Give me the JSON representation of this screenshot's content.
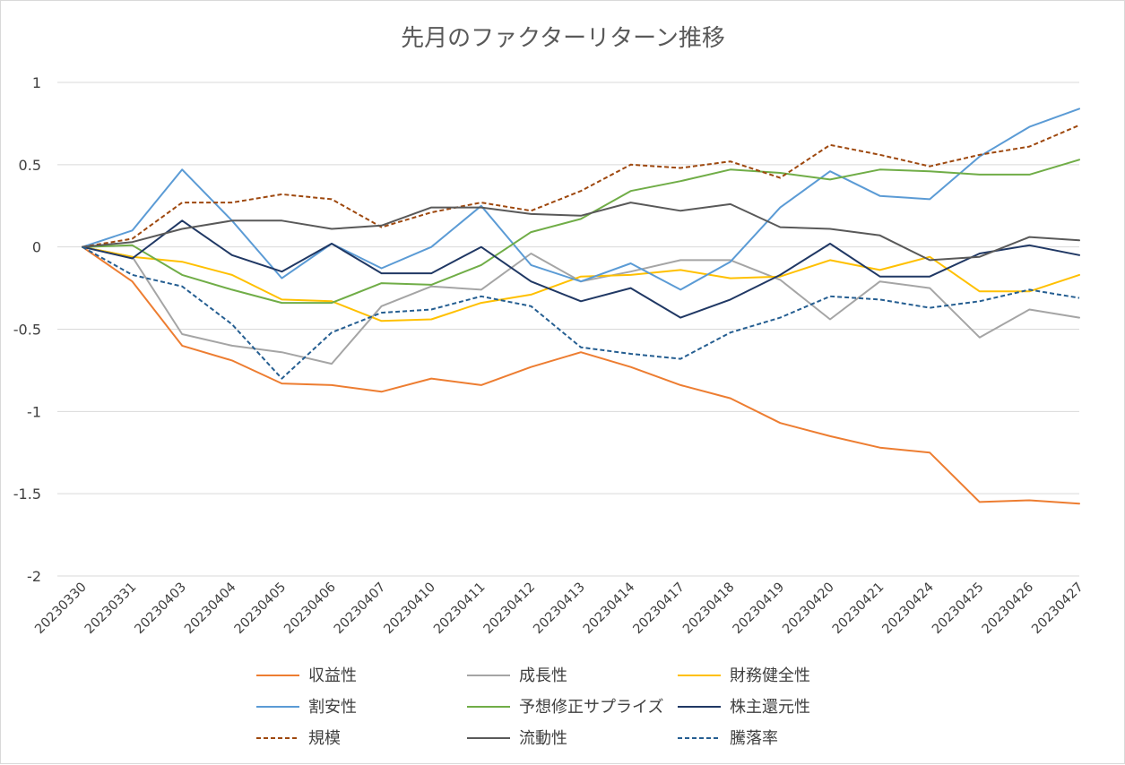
{
  "chart_data": {
    "type": "line",
    "title": "先月のファクターリターン推移",
    "xlabel": "",
    "ylabel": "",
    "ylim": [
      -2,
      1
    ],
    "yticks": [
      1,
      0.5,
      0,
      -0.5,
      -1,
      -1.5,
      -2
    ],
    "ytick_labels": [
      "1",
      "0.5",
      "0",
      "-0.5",
      "-1",
      "-1.5",
      "-2"
    ],
    "grid": true,
    "legend_position": "bottom",
    "x": [
      "20230330",
      "20230331",
      "20230403",
      "20230404",
      "20230405",
      "20230406",
      "20230407",
      "20230410",
      "20230411",
      "20230412",
      "20230413",
      "20230414",
      "20230417",
      "20230418",
      "20230419",
      "20230420",
      "20230421",
      "20230424",
      "20230425",
      "20230426",
      "20230427"
    ],
    "series": [
      {
        "name": "収益性",
        "color": "#ed7d31",
        "dash": "solid",
        "values": [
          0,
          -0.21,
          -0.6,
          -0.69,
          -0.83,
          -0.84,
          -0.88,
          -0.8,
          -0.84,
          -0.73,
          -0.64,
          -0.73,
          -0.84,
          -0.92,
          -1.07,
          -1.15,
          -1.22,
          -1.25,
          -1.55,
          -1.54,
          -1.56
        ]
      },
      {
        "name": "成長性",
        "color": "#a5a5a5",
        "dash": "solid",
        "values": [
          0,
          -0.06,
          -0.53,
          -0.6,
          -0.64,
          -0.71,
          -0.36,
          -0.24,
          -0.26,
          -0.04,
          -0.21,
          -0.15,
          -0.08,
          -0.08,
          -0.2,
          -0.44,
          -0.21,
          -0.25,
          -0.55,
          -0.38,
          -0.43
        ]
      },
      {
        "name": "財務健全性",
        "color": "#ffc000",
        "dash": "solid",
        "values": [
          0,
          -0.06,
          -0.09,
          -0.17,
          -0.32,
          -0.33,
          -0.45,
          -0.44,
          -0.34,
          -0.29,
          -0.18,
          -0.17,
          -0.14,
          -0.19,
          -0.18,
          -0.08,
          -0.14,
          -0.06,
          -0.27,
          -0.27,
          -0.17
        ]
      },
      {
        "name": "割安性",
        "color": "#5b9bd5",
        "dash": "solid",
        "values": [
          0,
          0.1,
          0.47,
          0.16,
          -0.19,
          0.02,
          -0.13,
          0.0,
          0.25,
          -0.11,
          -0.21,
          -0.1,
          -0.26,
          -0.09,
          0.24,
          0.46,
          0.31,
          0.29,
          0.55,
          0.73,
          0.84
        ]
      },
      {
        "name": "予想修正サプライズ",
        "color": "#70ad47",
        "dash": "solid",
        "values": [
          0,
          0.01,
          -0.17,
          -0.26,
          -0.34,
          -0.34,
          -0.22,
          -0.23,
          -0.11,
          0.09,
          0.17,
          0.34,
          0.4,
          0.47,
          0.45,
          0.41,
          0.47,
          0.46,
          0.44,
          0.44,
          0.53
        ]
      },
      {
        "name": "株主還元性",
        "color": "#203864",
        "dash": "solid",
        "values": [
          0,
          -0.07,
          0.16,
          -0.05,
          -0.15,
          0.02,
          -0.16,
          -0.16,
          0.0,
          -0.21,
          -0.33,
          -0.25,
          -0.43,
          -0.32,
          -0.17,
          0.02,
          -0.18,
          -0.18,
          -0.04,
          0.01,
          -0.05
        ]
      },
      {
        "name": "規模",
        "color": "#9e480e",
        "dash": "dashed",
        "values": [
          0,
          0.05,
          0.27,
          0.27,
          0.32,
          0.29,
          0.12,
          0.21,
          0.27,
          0.22,
          0.34,
          0.5,
          0.48,
          0.52,
          0.42,
          0.62,
          0.56,
          0.49,
          0.56,
          0.61,
          0.74
        ]
      },
      {
        "name": "流動性",
        "color": "#595959",
        "dash": "solid",
        "values": [
          0,
          0.03,
          0.11,
          0.16,
          0.16,
          0.11,
          0.13,
          0.24,
          0.24,
          0.2,
          0.19,
          0.27,
          0.22,
          0.26,
          0.12,
          0.11,
          0.07,
          -0.08,
          -0.06,
          0.06,
          0.04
        ]
      },
      {
        "name": "騰落率",
        "color": "#255e91",
        "dash": "dashed",
        "values": [
          0,
          -0.17,
          -0.24,
          -0.47,
          -0.8,
          -0.52,
          -0.4,
          -0.38,
          -0.3,
          -0.36,
          -0.61,
          -0.65,
          -0.68,
          -0.52,
          -0.43,
          -0.3,
          -0.32,
          -0.37,
          -0.33,
          -0.26,
          -0.31
        ]
      }
    ]
  }
}
